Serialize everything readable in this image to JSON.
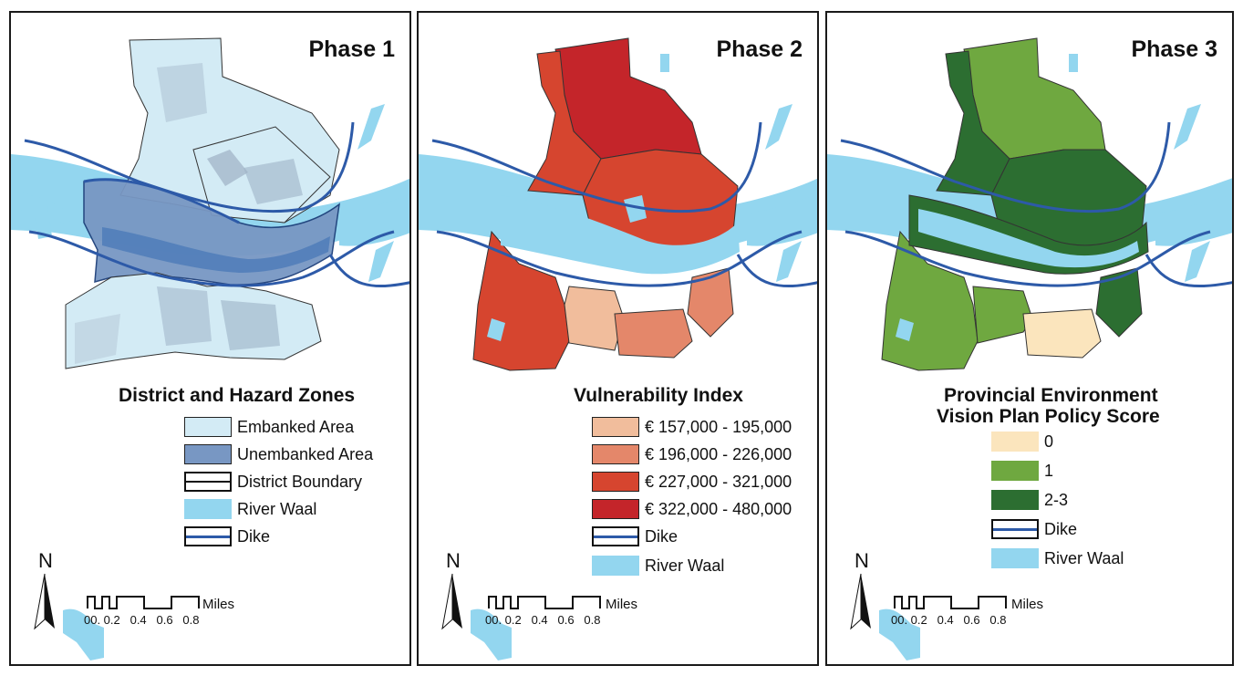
{
  "panels": [
    {
      "phase": "Phase 1",
      "legend_title": "District and Hazard Zones",
      "legend": [
        {
          "label": "Embanked Area",
          "color": "#d3ebf5",
          "kind": "fill"
        },
        {
          "label": "Unembanked Area",
          "color": "#7897c3",
          "kind": "fill"
        },
        {
          "label": "District Boundary",
          "color": "#ffffff",
          "kind": "district"
        },
        {
          "label": "River Waal",
          "color": "#93d6ef",
          "kind": "river"
        },
        {
          "label": "Dike",
          "color": "#2d5aa8",
          "kind": "dike"
        }
      ]
    },
    {
      "phase": "Phase 2",
      "legend_title": "Vulnerability Index",
      "legend": [
        {
          "label": "€ 157,000 - 195,000",
          "color": "#f1bd9c",
          "kind": "fill"
        },
        {
          "label": "€ 196,000 - 226,000",
          "color": "#e4876a",
          "kind": "fill"
        },
        {
          "label": "€ 227,000 - 321,000",
          "color": "#d6452f",
          "kind": "fill"
        },
        {
          "label": "€ 322,000 - 480,000",
          "color": "#c4252a",
          "kind": "fill"
        },
        {
          "label": "Dike",
          "color": "#2d5aa8",
          "kind": "dike"
        },
        {
          "label": "River Waal",
          "color": "#93d6ef",
          "kind": "river"
        }
      ]
    },
    {
      "phase": "Phase 3",
      "legend_title_lines": [
        "Provincial Environment",
        "Vision Plan Policy Score"
      ],
      "legend": [
        {
          "label": "0",
          "color": "#fbe5bd",
          "kind": "fill"
        },
        {
          "label": "1",
          "color": "#6fa840",
          "kind": "fill"
        },
        {
          "label": "2-3",
          "color": "#2c6e31",
          "kind": "fill"
        },
        {
          "label": "Dike",
          "color": "#2d5aa8",
          "kind": "dike"
        },
        {
          "label": "River Waal",
          "color": "#93d6ef",
          "kind": "river"
        }
      ]
    }
  ],
  "north_label": "N",
  "scale": {
    "unit": "Miles",
    "ticks": [
      "0",
      "0.1",
      "0.2",
      "0.4",
      "0.6",
      "0.8"
    ],
    "tick_text": "00. 0.2   0.4   0.6   0.8"
  }
}
